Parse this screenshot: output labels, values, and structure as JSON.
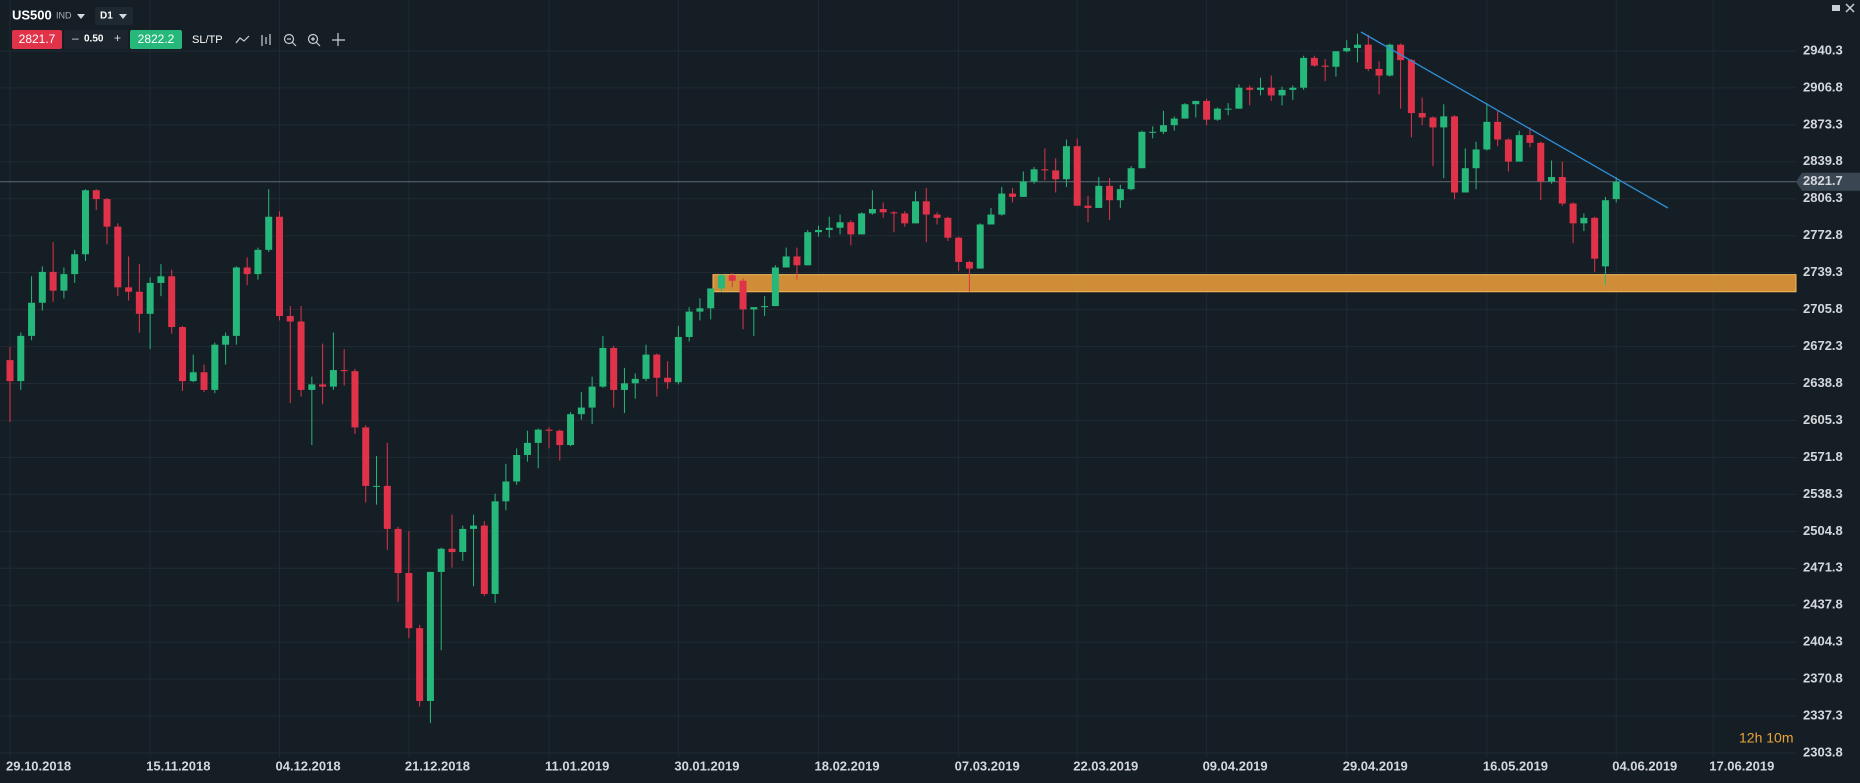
{
  "header": {
    "symbol": "US500",
    "kind": "IND",
    "timeframe": "D1",
    "bid": "2821.7",
    "spread": "0.50",
    "ask": "2822.2",
    "sltp": "SL/TP"
  },
  "timer": "12h 10m",
  "chart_data": {
    "type": "candlestick",
    "up_color": "#26b77b",
    "down_color": "#e0334a",
    "x": [
      "29.10.2018",
      "30.10.2018",
      "31.10.2018",
      "01.11.2018",
      "02.11.2018",
      "05.11.2018",
      "06.11.2018",
      "07.11.2018",
      "08.11.2018",
      "09.11.2018",
      "12.11.2018",
      "13.11.2018",
      "14.11.2018",
      "15.11.2018",
      "16.11.2018",
      "19.11.2018",
      "20.11.2018",
      "21.11.2018",
      "23.11.2018",
      "26.11.2018",
      "27.11.2018",
      "28.11.2018",
      "29.11.2018",
      "30.11.2018",
      "03.12.2018",
      "04.12.2018",
      "06.12.2018",
      "07.12.2018",
      "10.12.2018",
      "11.12.2018",
      "12.12.2018",
      "13.12.2018",
      "14.12.2018",
      "17.12.2018",
      "18.12.2018",
      "19.12.2018",
      "20.12.2018",
      "21.12.2018",
      "24.12.2018",
      "26.12.2018",
      "27.12.2018",
      "28.12.2018",
      "31.12.2018",
      "02.01.2019",
      "03.01.2019",
      "04.01.2019",
      "07.01.2019",
      "08.01.2019",
      "09.01.2019",
      "10.01.2019",
      "11.01.2019",
      "14.01.2019",
      "15.01.2019",
      "16.01.2019",
      "17.01.2019",
      "18.01.2019",
      "22.01.2019",
      "23.01.2019",
      "24.01.2019",
      "25.01.2019",
      "28.01.2019",
      "29.01.2019",
      "30.01.2019",
      "31.01.2019",
      "01.02.2019",
      "04.02.2019",
      "05.02.2019",
      "06.02.2019",
      "07.02.2019",
      "08.02.2019",
      "11.02.2019",
      "12.02.2019",
      "13.02.2019",
      "14.02.2019",
      "15.02.2019",
      "18.02.2019",
      "19.02.2019",
      "20.02.2019",
      "21.02.2019",
      "22.02.2019",
      "25.02.2019",
      "26.02.2019",
      "27.02.2019",
      "28.02.2019",
      "01.03.2019",
      "04.03.2019",
      "05.03.2019",
      "06.03.2019",
      "07.03.2019",
      "08.03.2019",
      "11.03.2019",
      "12.03.2019",
      "13.03.2019",
      "14.03.2019",
      "15.03.2019",
      "18.03.2019",
      "19.03.2019",
      "20.03.2019",
      "21.03.2019",
      "22.03.2019",
      "25.03.2019",
      "26.03.2019",
      "27.03.2019",
      "28.03.2019",
      "29.03.2019",
      "01.04.2019",
      "02.04.2019",
      "03.04.2019",
      "04.04.2019",
      "05.04.2019",
      "08.04.2019",
      "09.04.2019",
      "10.04.2019",
      "11.04.2019",
      "12.04.2019",
      "15.04.2019",
      "16.04.2019",
      "17.04.2019",
      "18.04.2019",
      "22.04.2019",
      "23.04.2019",
      "24.04.2019",
      "25.04.2019",
      "26.04.2019",
      "29.04.2019",
      "30.04.2019",
      "01.05.2019",
      "02.05.2019",
      "03.05.2019",
      "06.05.2019",
      "07.05.2019",
      "08.05.2019",
      "09.05.2019",
      "10.05.2019",
      "13.05.2019",
      "14.05.2019",
      "15.05.2019",
      "16.05.2019",
      "17.05.2019",
      "20.05.2019",
      "21.05.2019",
      "22.05.2019",
      "23.05.2019",
      "24.05.2019",
      "28.05.2019",
      "29.05.2019",
      "30.05.2019",
      "31.05.2019",
      "03.06.2019",
      "04.06.2019"
    ],
    "open": [
      2660,
      2641,
      2682,
      2712,
      2740,
      2723,
      2738,
      2756,
      2814,
      2806,
      2781,
      2726,
      2722,
      2702,
      2730,
      2736,
      2690,
      2641,
      2649,
      2633,
      2674,
      2682,
      2744,
      2738,
      2760,
      2790,
      2700,
      2695,
      2633,
      2638,
      2636,
      2651,
      2650,
      2599,
      2546,
      2546,
      2507,
      2467,
      2417,
      2351,
      2468,
      2489,
      2486,
      2507,
      2510,
      2448,
      2532,
      2550,
      2574,
      2585,
      2597,
      2596,
      2583,
      2611,
      2617,
      2636,
      2671,
      2633,
      2639,
      2643,
      2665,
      2644,
      2640,
      2681,
      2704,
      2707,
      2725,
      2737,
      2732,
      2706,
      2708,
      2709,
      2744,
      2754,
      2746,
      2776,
      2778,
      2780,
      2785,
      2774,
      2793,
      2797,
      2794,
      2793,
      2784,
      2804,
      2792,
      2789,
      2771,
      2749,
      2743,
      2783,
      2792,
      2811,
      2808,
      2822,
      2833,
      2832,
      2824,
      2854,
      2800,
      2798,
      2818,
      2805,
      2815,
      2834,
      2867,
      2867,
      2873,
      2879,
      2892,
      2895,
      2878,
      2888,
      2888,
      2907,
      2905,
      2907,
      2900,
      2905,
      2907,
      2934,
      2927,
      2926,
      2940,
      2943,
      2946,
      2924,
      2918,
      2946,
      2932,
      2884,
      2880,
      2871,
      2881,
      2812,
      2834,
      2851,
      2876,
      2860,
      2840,
      2864,
      2857,
      2822,
      2826,
      2802,
      2784,
      2789,
      2745,
      2806
    ],
    "high": [
      2672,
      2685,
      2736,
      2745,
      2767,
      2744,
      2760,
      2815,
      2815,
      2807,
      2784,
      2754,
      2747,
      2735,
      2747,
      2742,
      2691,
      2665,
      2656,
      2676,
      2685,
      2745,
      2753,
      2762,
      2815,
      2795,
      2709,
      2709,
      2645,
      2675,
      2685,
      2670,
      2652,
      2601,
      2573,
      2585,
      2509,
      2505,
      2420,
      2468,
      2490,
      2520,
      2510,
      2520,
      2514,
      2539,
      2566,
      2580,
      2596,
      2598,
      2599,
      2597,
      2613,
      2631,
      2645,
      2682,
      2673,
      2653,
      2648,
      2674,
      2666,
      2659,
      2691,
      2708,
      2716,
      2725,
      2738,
      2739,
      2734,
      2708,
      2718,
      2746,
      2762,
      2762,
      2778,
      2782,
      2790,
      2792,
      2787,
      2794,
      2814,
      2803,
      2795,
      2795,
      2813,
      2816,
      2794,
      2790,
      2772,
      2750,
      2784,
      2798,
      2817,
      2816,
      2831,
      2835,
      2852,
      2843,
      2860,
      2861,
      2809,
      2826,
      2825,
      2819,
      2836,
      2868,
      2872,
      2886,
      2881,
      2893,
      2895,
      2897,
      2889,
      2893,
      2910,
      2909,
      2916,
      2918,
      2908,
      2909,
      2936,
      2936,
      2933,
      2940,
      2950,
      2956,
      2955,
      2931,
      2947,
      2947,
      2933,
      2898,
      2881,
      2892,
      2882,
      2852,
      2858,
      2893,
      2886,
      2861,
      2868,
      2871,
      2858,
      2841,
      2840,
      2803,
      2793,
      2790,
      2808,
      2826
    ],
    "low": [
      2604,
      2633,
      2678,
      2705,
      2713,
      2716,
      2730,
      2750,
      2796,
      2765,
      2718,
      2714,
      2685,
      2670,
      2718,
      2684,
      2632,
      2640,
      2631,
      2630,
      2656,
      2674,
      2728,
      2733,
      2758,
      2696,
      2621,
      2627,
      2583,
      2620,
      2633,
      2637,
      2593,
      2531,
      2529,
      2488,
      2441,
      2408,
      2346,
      2331,
      2397,
      2472,
      2478,
      2455,
      2446,
      2440,
      2524,
      2547,
      2568,
      2562,
      2580,
      2569,
      2582,
      2606,
      2602,
      2635,
      2617,
      2612,
      2625,
      2641,
      2627,
      2634,
      2638,
      2677,
      2696,
      2697,
      2722,
      2726,
      2688,
      2682,
      2700,
      2709,
      2744,
      2733,
      2746,
      2772,
      2771,
      2774,
      2764,
      2774,
      2792,
      2789,
      2776,
      2781,
      2784,
      2767,
      2783,
      2768,
      2741,
      2722,
      2743,
      2783,
      2791,
      2803,
      2808,
      2820,
      2823,
      2812,
      2817,
      2800,
      2785,
      2798,
      2787,
      2798,
      2814,
      2834,
      2861,
      2865,
      2868,
      2879,
      2880,
      2873,
      2877,
      2882,
      2888,
      2891,
      2900,
      2895,
      2891,
      2896,
      2905,
      2926,
      2913,
      2917,
      2939,
      2930,
      2922,
      2901,
      2917,
      2888,
      2862,
      2873,
      2836,
      2825,
      2806,
      2812,
      2815,
      2850,
      2854,
      2831,
      2840,
      2853,
      2805,
      2820,
      2800,
      2766,
      2777,
      2740,
      2728,
      2803
    ],
    "close": [
      2641,
      2682,
      2712,
      2740,
      2723,
      2738,
      2756,
      2814,
      2806,
      2781,
      2726,
      2722,
      2702,
      2730,
      2736,
      2690,
      2641,
      2649,
      2633,
      2674,
      2682,
      2744,
      2738,
      2760,
      2790,
      2700,
      2695,
      2633,
      2638,
      2636,
      2651,
      2650,
      2599,
      2546,
      2546,
      2507,
      2467,
      2417,
      2351,
      2468,
      2489,
      2486,
      2507,
      2510,
      2448,
      2532,
      2550,
      2574,
      2585,
      2597,
      2596,
      2583,
      2611,
      2617,
      2636,
      2671,
      2633,
      2639,
      2643,
      2665,
      2644,
      2640,
      2681,
      2704,
      2707,
      2725,
      2737,
      2732,
      2706,
      2708,
      2709,
      2744,
      2754,
      2746,
      2776,
      2778,
      2780,
      2785,
      2774,
      2793,
      2797,
      2794,
      2793,
      2784,
      2804,
      2792,
      2789,
      2771,
      2749,
      2743,
      2783,
      2792,
      2811,
      2808,
      2822,
      2833,
      2832,
      2824,
      2854,
      2800,
      2798,
      2818,
      2805,
      2815,
      2834,
      2867,
      2867,
      2873,
      2879,
      2892,
      2895,
      2878,
      2888,
      2888,
      2907,
      2905,
      2907,
      2900,
      2905,
      2907,
      2934,
      2927,
      2926,
      2940,
      2943,
      2946,
      2924,
      2918,
      2946,
      2932,
      2884,
      2880,
      2871,
      2881,
      2812,
      2834,
      2851,
      2876,
      2860,
      2840,
      2864,
      2857,
      2822,
      2826,
      2802,
      2784,
      2789,
      2752,
      2805,
      2821.7
    ],
    "ylim": [
      2300.2,
      2986.5
    ],
    "yticks": [
      2940.3,
      2906.8,
      2873.3,
      2839.8,
      2806.3,
      2772.8,
      2739.3,
      2705.8,
      2672.3,
      2638.8,
      2605.3,
      2571.8,
      2538.3,
      2504.8,
      2471.3,
      2437.8,
      2404.3,
      2370.8,
      2337.3,
      2303.8
    ],
    "xticks": [
      "29.10.2018",
      "15.11.2018",
      "04.12.2018",
      "21.12.2018",
      "11.01.2019",
      "30.01.2019",
      "18.02.2019",
      "07.03.2019",
      "22.03.2019",
      "09.04.2019",
      "29.04.2019",
      "16.05.2019",
      "04.06.2019",
      "17.06.2019"
    ],
    "grid": true,
    "zone": {
      "low": 2722,
      "high": 2737.5
    }
  }
}
